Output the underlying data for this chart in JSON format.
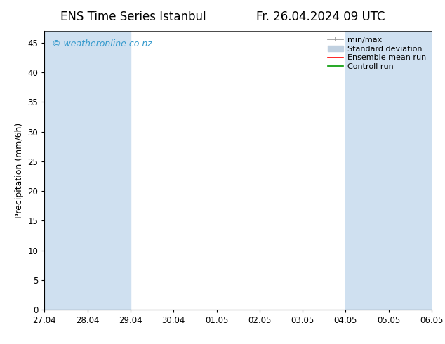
{
  "title_left": "ENS Time Series Istanbul",
  "title_right": "Fr. 26.04.2024 09 UTC",
  "ylabel": "Precipitation (mm/6h)",
  "ylim": [
    0,
    47
  ],
  "yticks": [
    0,
    5,
    10,
    15,
    20,
    25,
    30,
    35,
    40,
    45
  ],
  "xtick_labels": [
    "27.04",
    "28.04",
    "29.04",
    "30.04",
    "01.05",
    "02.05",
    "03.05",
    "04.05",
    "05.05",
    "06.05"
  ],
  "xlim": [
    0,
    9
  ],
  "shaded_bands": [
    [
      0,
      1
    ],
    [
      1,
      2
    ],
    [
      7,
      8
    ],
    [
      8,
      9
    ],
    [
      9,
      9.5
    ]
  ],
  "band_color": "#cfe0f0",
  "background_color": "#ffffff",
  "watermark": "© weatheronline.co.nz",
  "watermark_color": "#3399cc",
  "legend_items": [
    {
      "label": "min/max",
      "color": "#999999",
      "lw": 1.2
    },
    {
      "label": "Standard deviation",
      "color": "#c0d0e0",
      "lw": 5
    },
    {
      "label": "Ensemble mean run",
      "color": "#ff0000",
      "lw": 1.2
    },
    {
      "label": "Controll run",
      "color": "#009900",
      "lw": 1.2
    }
  ],
  "title_fontsize": 12,
  "axis_label_fontsize": 9,
  "tick_fontsize": 8.5,
  "watermark_fontsize": 9,
  "legend_fontsize": 8
}
